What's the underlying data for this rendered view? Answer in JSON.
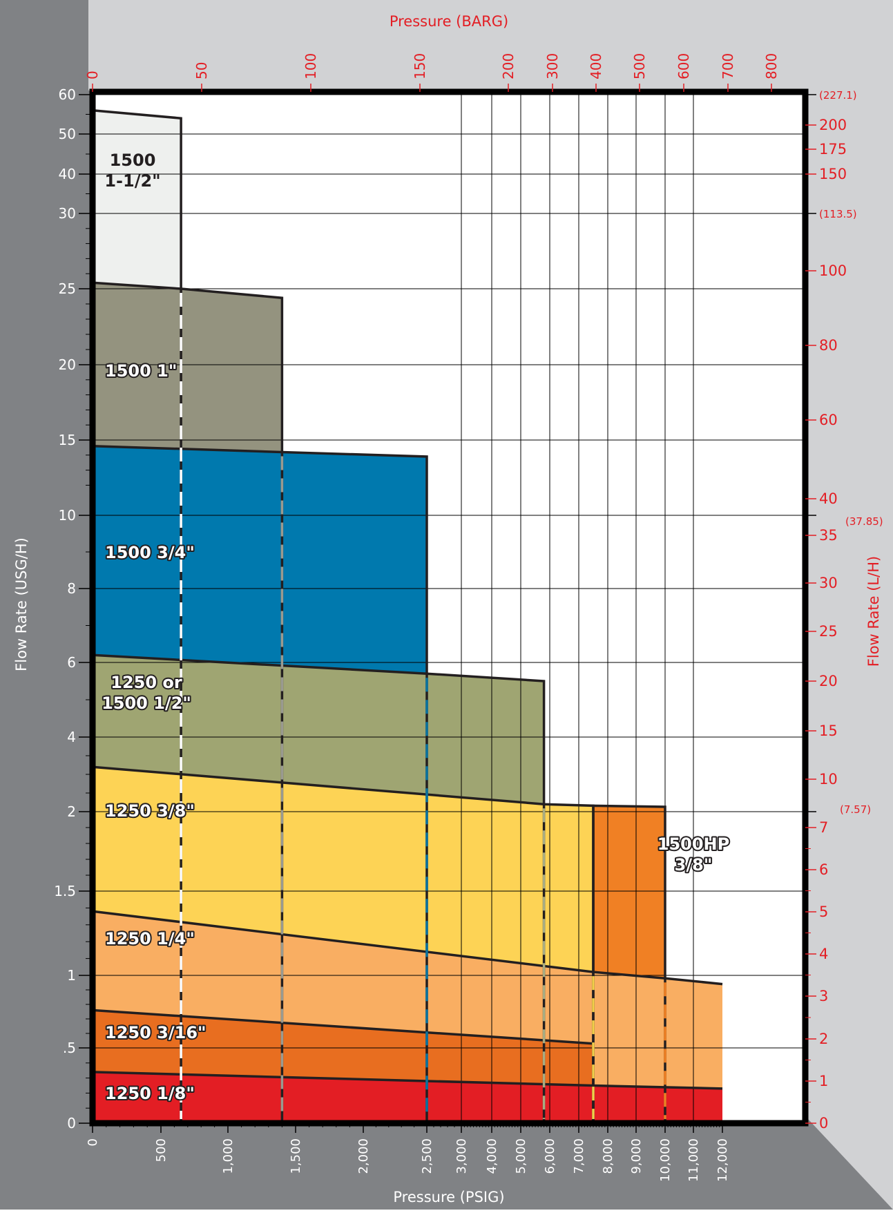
{
  "chart_data": {
    "type": "area",
    "title": "",
    "xlabel": "Pressure (PSIG)",
    "x2label": "Pressure (BARG)",
    "ylabel": "Flow Rate (USG/H)",
    "y2label": "Flow Rate (L/H)",
    "xlim": [
      0,
      12000
    ],
    "ylim": [
      0,
      60
    ],
    "grid": true,
    "x_ticks": [
      {
        "v": 0,
        "label": "0"
      },
      {
        "v": 500,
        "label": "500"
      },
      {
        "v": 1000,
        "label": "1,000"
      },
      {
        "v": 1500,
        "label": "1,500"
      },
      {
        "v": 2000,
        "label": "2,000"
      },
      {
        "v": 2500,
        "label": "2,500"
      },
      {
        "v": 3000,
        "label": "3,000"
      },
      {
        "v": 4000,
        "label": "4,000"
      },
      {
        "v": 5000,
        "label": "5,000"
      },
      {
        "v": 6000,
        "label": "6,000"
      },
      {
        "v": 7000,
        "label": "7,000"
      },
      {
        "v": 8000,
        "label": "8,000"
      },
      {
        "v": 9000,
        "label": "9,000"
      },
      {
        "v": 10000,
        "label": "10,000"
      },
      {
        "v": 11000,
        "label": "11,000"
      },
      {
        "v": 12000,
        "label": "12,000"
      }
    ],
    "x2_ticks": [
      {
        "v": 0,
        "label": "0"
      },
      {
        "v": 50,
        "label": "50"
      },
      {
        "v": 100,
        "label": "100"
      },
      {
        "v": 150,
        "label": "150"
      },
      {
        "v": 200,
        "label": "200"
      },
      {
        "v": 300,
        "label": "300"
      },
      {
        "v": 400,
        "label": "400"
      },
      {
        "v": 500,
        "label": "500"
      },
      {
        "v": 600,
        "label": "600"
      },
      {
        "v": 700,
        "label": "700"
      },
      {
        "v": 800,
        "label": "800"
      }
    ],
    "y_ticks": [
      {
        "v": 0,
        "label": "0"
      },
      {
        "v": 0.5,
        "label": ".5"
      },
      {
        "v": 1,
        "label": "1"
      },
      {
        "v": 1.5,
        "label": "1.5"
      },
      {
        "v": 2,
        "label": "2"
      },
      {
        "v": 4,
        "label": "4"
      },
      {
        "v": 6,
        "label": "6"
      },
      {
        "v": 8,
        "label": "8"
      },
      {
        "v": 10,
        "label": "10"
      },
      {
        "v": 15,
        "label": "15"
      },
      {
        "v": 20,
        "label": "20"
      },
      {
        "v": 25,
        "label": "25"
      },
      {
        "v": 30,
        "label": "30"
      },
      {
        "v": 40,
        "label": "40"
      },
      {
        "v": 50,
        "label": "50"
      },
      {
        "v": 60,
        "label": "60"
      }
    ],
    "y2_ticks": [
      {
        "v": 0,
        "label": "0"
      },
      {
        "v": 1,
        "label": "1"
      },
      {
        "v": 2,
        "label": "2"
      },
      {
        "v": 3,
        "label": "3"
      },
      {
        "v": 4,
        "label": "4"
      },
      {
        "v": 5,
        "label": "5"
      },
      {
        "v": 6,
        "label": "6"
      },
      {
        "v": 7,
        "label": "7"
      },
      {
        "v": 10,
        "label": "10"
      },
      {
        "v": 15,
        "label": "15"
      },
      {
        "v": 20,
        "label": "20"
      },
      {
        "v": 25,
        "label": "25"
      },
      {
        "v": 30,
        "label": "30"
      },
      {
        "v": 35,
        "label": "35"
      },
      {
        "v": 40,
        "label": "40"
      },
      {
        "v": 60,
        "label": "60"
      },
      {
        "v": 80,
        "label": "80"
      },
      {
        "v": 100,
        "label": "100"
      },
      {
        "v": 150,
        "label": "150"
      },
      {
        "v": 175,
        "label": "175"
      },
      {
        "v": 200,
        "label": "200"
      }
    ],
    "y2_equivalents": [
      {
        "v": 227.1,
        "label": "(227.1)"
      },
      {
        "v": 113.5,
        "label": "(113.5)"
      },
      {
        "v": 37.85,
        "label": "(37.85)"
      },
      {
        "v": 7.57,
        "label": "(7.57)"
      }
    ],
    "series": [
      {
        "name": "1500 1-1/2\"",
        "label_lines": [
          "1500",
          "1-1/2\""
        ],
        "color": "#EEF0EE",
        "x_max": 650,
        "top": [
          [
            0,
            56
          ],
          [
            650,
            54
          ]
        ],
        "divider": "#FFFFFF"
      },
      {
        "name": "1500 1\"",
        "label_lines": [
          "1500 1\""
        ],
        "color": "#94937F",
        "x_max": 1400,
        "top": [
          [
            0,
            25.4
          ],
          [
            650,
            25
          ],
          [
            1400,
            24.4
          ]
        ],
        "divider": "#9A9A90"
      },
      {
        "name": "1500 3/4\"",
        "label_lines": [
          "1500 3/4\""
        ],
        "color": "#0079AE",
        "x_max": 2500,
        "top": [
          [
            0,
            14.6
          ],
          [
            1400,
            14.2
          ],
          [
            2500,
            13.9
          ]
        ],
        "divider": "#0A73A0"
      },
      {
        "name": "1250 or 1500 1/2\"",
        "label_lines": [
          "1250 or",
          "1500 1/2\""
        ],
        "color": "#9FA572",
        "x_max": 5800,
        "top": [
          [
            0,
            6.2
          ],
          [
            2500,
            5.7
          ],
          [
            5800,
            5.5
          ]
        ],
        "divider": "#A8AC82"
      },
      {
        "name": "1250 3/8\"",
        "label_lines": [
          "1250 3/8\""
        ],
        "color": "#FDD355",
        "x_max": 7500,
        "top": [
          [
            0,
            3.2
          ],
          [
            5800,
            2.2
          ],
          [
            7500,
            2.16
          ]
        ],
        "divider": "#F4CF4A"
      },
      {
        "name": "1500HP 3/8\"",
        "label_lines": [
          "1500HP",
          "3/8\""
        ],
        "color": "#F08024",
        "x_min": 7500,
        "x_max": 10000,
        "top": [
          [
            7500,
            2.16
          ],
          [
            10000,
            2.13
          ]
        ],
        "divider": "#F08024"
      },
      {
        "name": "1250 1/4\"",
        "label_lines": [
          "1250 1/4\""
        ],
        "color": "#F9AE62",
        "x_max": 12000,
        "top": [
          [
            0,
            1.38
          ],
          [
            7500,
            1.02
          ],
          [
            10000,
            0.98
          ],
          [
            12000,
            0.94
          ]
        ]
      },
      {
        "name": "1250 3/16\"",
        "label_lines": [
          "1250 3/16\""
        ],
        "color": "#E86E20",
        "x_max": 7500,
        "top": [
          [
            0,
            0.76
          ],
          [
            7500,
            0.53
          ]
        ]
      },
      {
        "name": "1250 1/8\"",
        "label_lines": [
          "1250 1/8\""
        ],
        "color": "#E31E24",
        "x_max": 12000,
        "top": [
          [
            0,
            0.34
          ],
          [
            7500,
            0.25
          ],
          [
            12000,
            0.23
          ]
        ]
      }
    ]
  }
}
